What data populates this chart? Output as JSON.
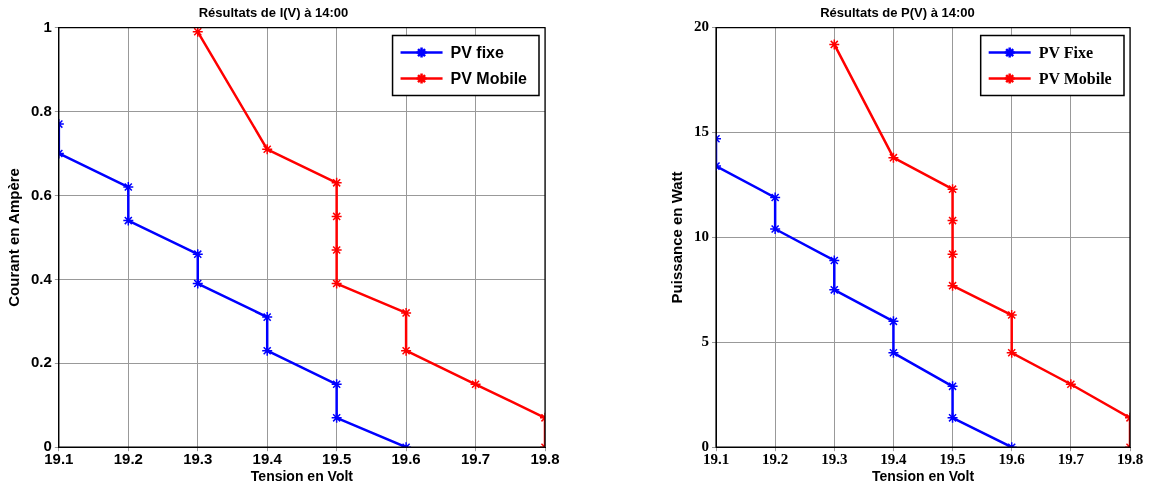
{
  "chart_data": [
    {
      "type": "line",
      "title": "Résultats de I(V) à 14:00",
      "xlabel": "Tension en Volt",
      "ylabel": "Courant en Ampère",
      "xlim": [
        19.1,
        19.8
      ],
      "xticks": [
        19.1,
        19.2,
        19.3,
        19.4,
        19.5,
        19.6,
        19.7,
        19.8
      ],
      "ylim": [
        0,
        1
      ],
      "yticks": [
        0,
        0.2,
        0.4,
        0.6,
        0.8,
        1
      ],
      "grid": true,
      "legend": "top right",
      "marker": "cross",
      "line_style": "solid",
      "series": [
        {
          "name": "PV fixe",
          "color": "#0000ff",
          "x": [
            19.1,
            19.1,
            19.2,
            19.2,
            19.3,
            19.3,
            19.4,
            19.4,
            19.5,
            19.5,
            19.6
          ],
          "values": [
            0.77,
            0.7,
            0.62,
            0.54,
            0.46,
            0.39,
            0.31,
            0.23,
            0.15,
            0.07,
            0
          ]
        },
        {
          "name": "PV Mobile",
          "color": "#ff0000",
          "x": [
            19.3,
            19.4,
            19.5,
            19.5,
            19.5,
            19.5,
            19.6,
            19.6,
            19.7,
            19.8,
            19.8
          ],
          "values": [
            0.99,
            0.71,
            0.63,
            0.55,
            0.47,
            0.39,
            0.32,
            0.23,
            0.15,
            0.07,
            0
          ]
        }
      ]
    },
    {
      "type": "line",
      "title": "Résultats de P(V) à 14:00",
      "xlabel": "Tension en Volt",
      "ylabel": "Puissance en Watt",
      "xlim": [
        19.1,
        19.8
      ],
      "xticks": [
        19.1,
        19.2,
        19.3,
        19.4,
        19.5,
        19.6,
        19.7,
        19.8
      ],
      "ylim": [
        0,
        20
      ],
      "yticks": [
        0,
        5,
        10,
        15,
        20
      ],
      "grid": true,
      "legend": "top right",
      "marker": "cross",
      "line_style": "solid",
      "series": [
        {
          "name": "PV Fixe",
          "color": "#0000ff",
          "x": [
            19.1,
            19.1,
            19.2,
            19.2,
            19.3,
            19.3,
            19.4,
            19.4,
            19.5,
            19.5,
            19.6
          ],
          "values": [
            14.7,
            13.4,
            11.9,
            10.4,
            8.9,
            7.5,
            6.0,
            4.5,
            2.9,
            1.4,
            0
          ]
        },
        {
          "name": "PV Mobile",
          "color": "#ff0000",
          "x": [
            19.3,
            19.4,
            19.5,
            19.5,
            19.5,
            19.5,
            19.6,
            19.6,
            19.7,
            19.8,
            19.8
          ],
          "values": [
            19.2,
            13.8,
            12.3,
            10.8,
            9.2,
            7.7,
            6.3,
            4.5,
            3.0,
            1.4,
            0
          ]
        }
      ]
    }
  ]
}
